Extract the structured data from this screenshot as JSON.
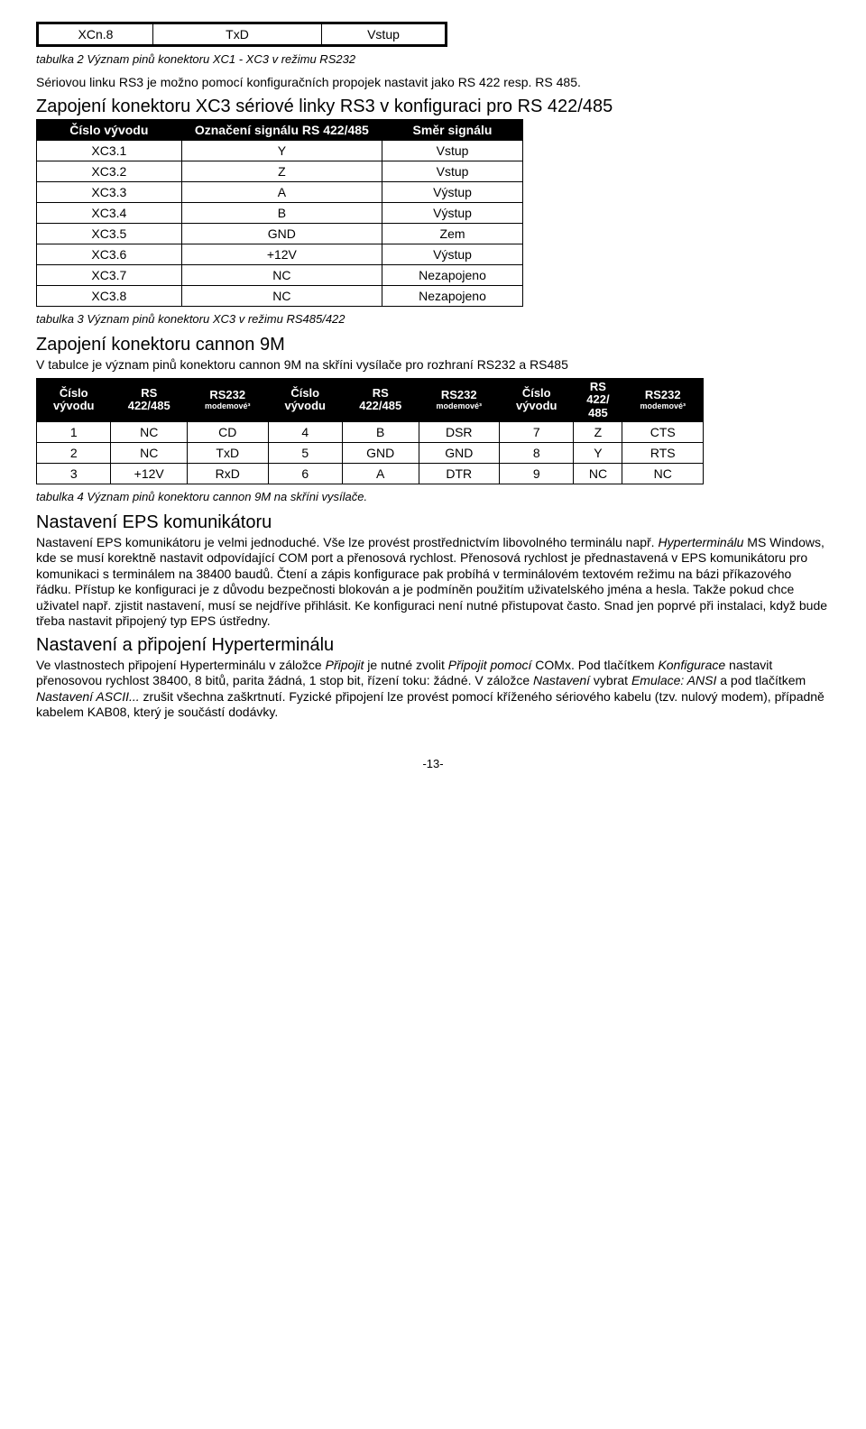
{
  "table1": {
    "row": [
      "XCn.8",
      "TxD",
      "Vstup"
    ]
  },
  "caption1": "tabulka 2 Význam pinů konektoru XC1 - XC3 v režimu RS232",
  "para1": "Sériovou linku RS3 je možno pomocí konfiguračních propojek nastavit jako RS 422 resp. RS 485.",
  "h1": "Zapojení konektoru XC3 sériové linky RS3 v konfiguraci pro RS 422/485",
  "table2": {
    "headers": [
      "Číslo vývodu",
      "Označení signálu RS 422/485",
      "Směr signálu"
    ],
    "rows": [
      [
        "XC3.1",
        "Y",
        "Vstup"
      ],
      [
        "XC3.2",
        "Z",
        "Vstup"
      ],
      [
        "XC3.3",
        "A",
        "Výstup"
      ],
      [
        "XC3.4",
        "B",
        "Výstup"
      ],
      [
        "XC3.5",
        "GND",
        "Zem"
      ],
      [
        "XC3.6",
        "+12V",
        "Výstup"
      ],
      [
        "XC3.7",
        "NC",
        "Nezapojeno"
      ],
      [
        "XC3.8",
        "NC",
        "Nezapojeno"
      ]
    ]
  },
  "caption2": "tabulka 3 Význam pinů konektoru XC3 v režimu RS485/422",
  "h2": "Zapojení konektoru cannon 9M",
  "para2": "V tabulce je význam pinů konektoru cannon 9M na skříni vysílače pro rozhraní RS232 a RS485",
  "table3": {
    "headers": [
      {
        "line1": "Číslo",
        "line2": "vývodu"
      },
      {
        "line1": "RS",
        "line2": "422/485"
      },
      {
        "line1": "RS232",
        "sub": "modemové³"
      },
      {
        "line1": "Číslo",
        "line2": "vývodu"
      },
      {
        "line1": "RS",
        "line2": "422/485"
      },
      {
        "line1": "RS232",
        "sub": "modemové³"
      },
      {
        "line1": "Číslo",
        "line2": "vývodu"
      },
      {
        "line1": "RS",
        "line2": "422/",
        "line3": "485"
      },
      {
        "line1": "RS232",
        "sub": "modemové³"
      }
    ],
    "rows": [
      [
        "1",
        "NC",
        "CD",
        "4",
        "B",
        "DSR",
        "7",
        "Z",
        "CTS"
      ],
      [
        "2",
        "NC",
        "TxD",
        "5",
        "GND",
        "GND",
        "8",
        "Y",
        "RTS"
      ],
      [
        "3",
        "+12V",
        "RxD",
        "6",
        "A",
        "DTR",
        "9",
        "NC",
        "NC"
      ]
    ]
  },
  "caption3": "tabulka 4 Význam pinů konektoru cannon 9M na skříni vysílače.",
  "h3": "Nastavení EPS komunikátoru",
  "para3a": "Nastavení EPS komunikátoru je velmi jednoduché. Vše lze provést prostřednictvím libovolného terminálu např. ",
  "para3b_italic": "Hyperterminálu",
  "para3c": " MS Windows, kde se musí korektně nastavit odpovídající COM port a přenosová rychlost. Přenosová rychlost je přednastavená v EPS komunikátoru pro komunikaci s terminálem na 38400 baudů. Čtení a zápis konfigurace pak probíhá v terminálovém textovém režimu na bázi příkazového řádku. Přístup ke konfiguraci je z důvodu bezpečnosti blokován a je podmíněn použitím uživatelského jména a hesla. Takže pokud chce uživatel např. zjistit nastavení, musí se nejdříve přihlásit. Ke konfiguraci není nutné přistupovat často. Snad jen poprvé při instalaci, když bude třeba nastavit připojený typ EPS ústředny.",
  "h4": "Nastavení a připojení Hyperterminálu",
  "para4a": "Ve vlastnostech připojení Hyperterminálu v záložce ",
  "para4b_i": "Připojit",
  "para4c": " je nutné zvolit ",
  "para4d_i": "Připojit pomocí",
  "para4e": " COMx. Pod tlačítkem ",
  "para4f_i": "Konfigurace",
  "para4g": " nastavit přenosovou rychlost 38400, 8 bitů, parita žádná, 1 stop bit, řízení toku: žádné. V záložce ",
  "para4h_i": "Nastavení",
  "para4i": " vybrat ",
  "para4j_i": "Emulace: ANSI",
  "para4k": " a pod tlačítkem ",
  "para4l_i": "Nastavení ASCII...",
  "para4m": " zrušit všechna zaškrtnutí. Fyzické připojení lze provést pomocí kříženého sériového kabelu (tzv. nulový modem), případně kabelem KAB08, který je součástí dodávky.",
  "pagenum": "-13-"
}
